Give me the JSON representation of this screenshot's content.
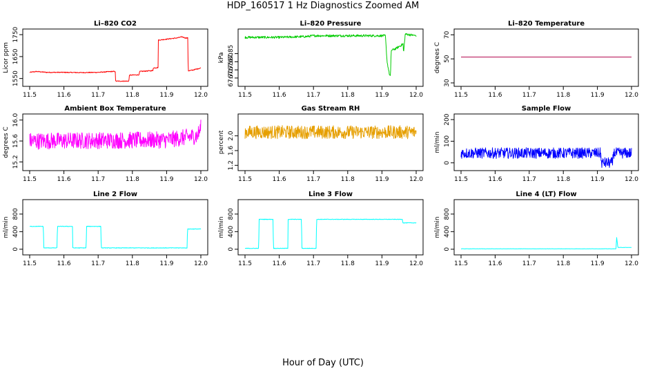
{
  "figure": {
    "title": "HDP_160517  1 Hz Diagnostics Zoomed AM",
    "xlabel": "Hour of Day (UTC)"
  },
  "chart_data": [
    {
      "type": "line",
      "title": "Li–820 CO2",
      "ylabel": "Licor ppm",
      "color": "#ff0000",
      "xlim": [
        11.5,
        12.0
      ],
      "ylim": [
        1530,
        1760
      ],
      "xticks": [
        "11.5",
        "11.6",
        "11.7",
        "11.8",
        "11.9",
        "12.0"
      ],
      "yticks": [
        "1550",
        "1650",
        "1750"
      ],
      "noise": 2,
      "points": [
        [
          11.5,
          1578
        ],
        [
          11.52,
          1582
        ],
        [
          11.55,
          1578
        ],
        [
          11.6,
          1578
        ],
        [
          11.65,
          1577
        ],
        [
          11.7,
          1578
        ],
        [
          11.74,
          1582
        ],
        [
          11.75,
          1582
        ],
        [
          11.751,
          1538
        ],
        [
          11.79,
          1538
        ],
        [
          11.791,
          1565
        ],
        [
          11.82,
          1567
        ],
        [
          11.821,
          1582
        ],
        [
          11.86,
          1586
        ],
        [
          11.861,
          1598
        ],
        [
          11.875,
          1600
        ],
        [
          11.876,
          1725
        ],
        [
          11.93,
          1735
        ],
        [
          11.945,
          1740
        ],
        [
          11.955,
          1735
        ],
        [
          11.962,
          1735
        ],
        [
          11.963,
          1585
        ],
        [
          11.975,
          1588
        ],
        [
          12.0,
          1598
        ]
      ]
    },
    {
      "type": "line",
      "title": "Li–820 Pressure",
      "ylabel": "kPa",
      "color": "#00cc00",
      "xlim": [
        11.5,
        12.0
      ],
      "ylim": [
        67.67,
        67.98
      ],
      "xticks": [
        "11.5",
        "11.6",
        "11.7",
        "11.8",
        "11.9",
        "12.0"
      ],
      "yticks": [
        "67.70",
        "67.75",
        "67.80",
        "67.85"
      ],
      "noise": 0.007,
      "points": [
        [
          11.5,
          67.95
        ],
        [
          11.6,
          67.95
        ],
        [
          11.68,
          67.955
        ],
        [
          11.7,
          67.96
        ],
        [
          11.8,
          67.96
        ],
        [
          11.91,
          67.96
        ],
        [
          11.915,
          67.8
        ],
        [
          11.922,
          67.72
        ],
        [
          11.925,
          67.71
        ],
        [
          11.927,
          67.87
        ],
        [
          11.94,
          67.88
        ],
        [
          11.955,
          67.9
        ],
        [
          11.962,
          67.91
        ],
        [
          11.963,
          67.85
        ],
        [
          11.968,
          67.97
        ],
        [
          11.985,
          67.965
        ],
        [
          12.0,
          67.96
        ]
      ]
    },
    {
      "type": "line",
      "title": "Li–820 Temperature",
      "ylabel": "degrees C",
      "color": "#b0004a",
      "xlim": [
        11.5,
        12.0
      ],
      "ylim": [
        30,
        72
      ],
      "xticks": [
        "11.5",
        "11.6",
        "11.7",
        "11.8",
        "11.9",
        "12.0"
      ],
      "yticks": [
        "30",
        "50",
        "70"
      ],
      "noise": 0,
      "points": [
        [
          11.5,
          51.5
        ],
        [
          12.0,
          51.5
        ]
      ]
    },
    {
      "type": "line",
      "title": "Ambient Box Temperature",
      "ylabel": "degrees C",
      "color": "#ff00ff",
      "xlim": [
        11.5,
        12.0
      ],
      "ylim": [
        15.1,
        16.05
      ],
      "xticks": [
        "11.5",
        "11.6",
        "11.7",
        "11.8",
        "11.9",
        "12.0"
      ],
      "yticks": [
        "15.2",
        "15.6",
        "16.0"
      ],
      "noise": 0.16,
      "points": [
        [
          11.5,
          15.6
        ],
        [
          11.9,
          15.62
        ],
        [
          11.99,
          15.7
        ],
        [
          12.0,
          15.85
        ]
      ]
    },
    {
      "type": "line",
      "title": "Gas Stream RH",
      "ylabel": "percent",
      "color": "#e69f00",
      "xlim": [
        11.5,
        12.0
      ],
      "ylim": [
        1.15,
        2.5
      ],
      "xticks": [
        "11.5",
        "11.6",
        "11.7",
        "11.8",
        "11.9",
        "12.0"
      ],
      "yticks": [
        "1.2",
        "1.6",
        "2.0"
      ],
      "noise": 0.18,
      "points": [
        [
          11.5,
          2.1
        ],
        [
          12.0,
          2.1
        ]
      ]
    },
    {
      "type": "line",
      "title": "Sample Flow",
      "ylabel": "ml/min",
      "color": "#0000ff",
      "xlim": [
        11.5,
        12.0
      ],
      "ylim": [
        -20,
        210
      ],
      "xticks": [
        "11.5",
        "11.6",
        "11.7",
        "11.8",
        "11.9",
        "12.0"
      ],
      "yticks": [
        "0",
        "100",
        "200"
      ],
      "noise": 25,
      "points": [
        [
          11.5,
          45
        ],
        [
          11.91,
          45
        ],
        [
          11.911,
          0
        ],
        [
          11.945,
          0
        ],
        [
          11.946,
          45
        ],
        [
          12.0,
          45
        ]
      ]
    },
    {
      "type": "line",
      "title": "Line 2 Flow",
      "ylabel": "ml/min",
      "color": "#00ffff",
      "xlim": [
        11.5,
        12.0
      ],
      "ylim": [
        -50,
        1050
      ],
      "xticks": [
        "11.5",
        "11.6",
        "11.7",
        "11.8",
        "11.9",
        "12.0"
      ],
      "yticks": [
        "0",
        "400",
        "800"
      ],
      "noise": 6,
      "points": [
        [
          11.5,
          520
        ],
        [
          11.54,
          520
        ],
        [
          11.541,
          30
        ],
        [
          11.58,
          30
        ],
        [
          11.581,
          520
        ],
        [
          11.625,
          520
        ],
        [
          11.626,
          30
        ],
        [
          11.665,
          30
        ],
        [
          11.666,
          520
        ],
        [
          11.708,
          520
        ],
        [
          11.709,
          30
        ],
        [
          11.96,
          30
        ],
        [
          11.961,
          460
        ],
        [
          12.0,
          460
        ]
      ]
    },
    {
      "type": "line",
      "title": "Line 3 Flow",
      "ylabel": "ml/min",
      "color": "#00ffff",
      "xlim": [
        11.5,
        12.0
      ],
      "ylim": [
        -50,
        1050
      ],
      "xticks": [
        "11.5",
        "11.6",
        "11.7",
        "11.8",
        "11.9",
        "12.0"
      ],
      "yticks": [
        "0",
        "400",
        "800"
      ],
      "noise": 6,
      "points": [
        [
          11.5,
          20
        ],
        [
          11.54,
          20
        ],
        [
          11.541,
          680
        ],
        [
          11.582,
          680
        ],
        [
          11.583,
          20
        ],
        [
          11.625,
          20
        ],
        [
          11.626,
          680
        ],
        [
          11.665,
          680
        ],
        [
          11.666,
          20
        ],
        [
          11.708,
          20
        ],
        [
          11.709,
          680
        ],
        [
          11.96,
          680
        ],
        [
          11.961,
          600
        ],
        [
          12.0,
          600
        ]
      ]
    },
    {
      "type": "line",
      "title": "Line 4 (LT) Flow",
      "ylabel": "ml/min",
      "color": "#00ffff",
      "xlim": [
        11.5,
        12.0
      ],
      "ylim": [
        -50,
        1050
      ],
      "xticks": [
        "11.5",
        "11.6",
        "11.7",
        "11.8",
        "11.9",
        "12.0"
      ],
      "yticks": [
        "0",
        "400",
        "800"
      ],
      "noise": 3,
      "points": [
        [
          11.5,
          10
        ],
        [
          11.955,
          10
        ],
        [
          11.956,
          300
        ],
        [
          11.96,
          40
        ],
        [
          12.0,
          40
        ]
      ]
    }
  ]
}
